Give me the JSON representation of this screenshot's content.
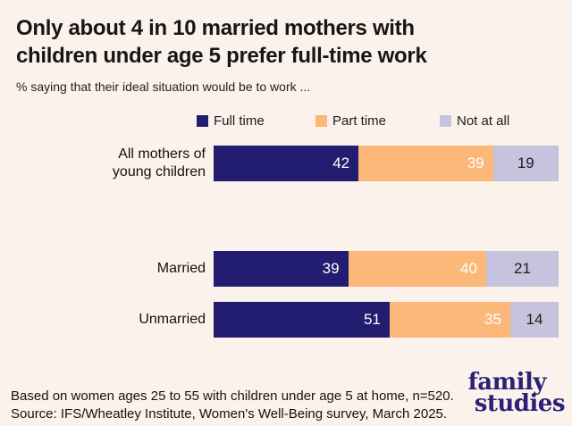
{
  "title": "Only about 4 in 10 married mothers with\nchildren under age 5 prefer full-time work",
  "subtitle": "% saying that their ideal situation would be to work ...",
  "legend": [
    {
      "label": "Full time",
      "color": "#221d71"
    },
    {
      "label": "Part time",
      "color": "#fcb878"
    },
    {
      "label": "Not at all",
      "color": "#c5c3dd"
    }
  ],
  "chart_data": {
    "type": "bar",
    "orientation": "horizontal_stacked",
    "categories": [
      "All mothers of\nyoung children",
      "Married",
      "Unmarried"
    ],
    "series": [
      {
        "name": "Full time",
        "color": "#221d71",
        "values": [
          42,
          39,
          51
        ],
        "value_label_color": "#ffffff",
        "value_label_align": "right"
      },
      {
        "name": "Part time",
        "color": "#fcb878",
        "values": [
          39,
          40,
          35
        ],
        "value_label_color": "#ffffff",
        "value_label_align": "right"
      },
      {
        "name": "Not at all",
        "color": "#c5c3dd",
        "values": [
          19,
          21,
          14
        ],
        "value_label_color": "#1d1d1d",
        "value_label_align": "center"
      }
    ],
    "xlim": [
      0,
      100
    ],
    "value_labels_shown": true,
    "legend_position": "top",
    "grid": false
  },
  "footer": {
    "line1": "Based on women ages 25 to 55 with children under age 5 at home, n=520.",
    "line2": "Source: IFS/Wheatley Institute, Women's Well-Being survey, March 2025."
  },
  "logo": {
    "line1": "family",
    "line2": "studies",
    "color": "#2b2277"
  },
  "colors": {
    "background": "#fcf2ec",
    "title_text": "#161616"
  }
}
